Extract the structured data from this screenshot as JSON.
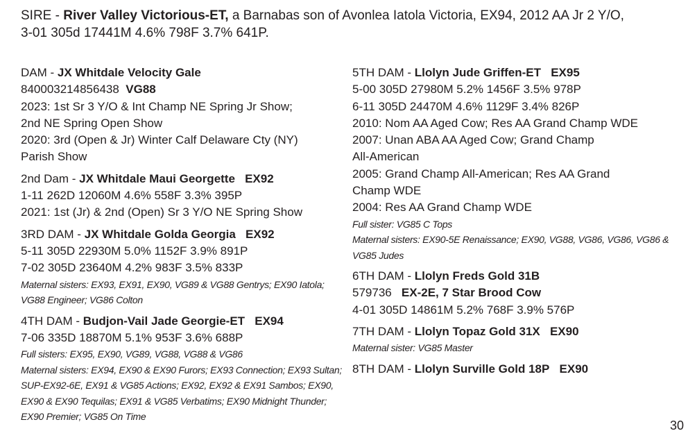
{
  "sire": {
    "label": "SIRE -",
    "name": "River Valley Victorious-ET,",
    "desc": "a Barnabas son of Avonlea Iatola Victoria, EX94, 2012 AA Jr 2 Y/O,",
    "record": "3-01 305d 17441M 4.6% 798F 3.7% 641P."
  },
  "dam": {
    "label": "DAM -",
    "name": "JX Whitdale Velocity Gale",
    "reg": "840003214856438",
    "score": "VG88",
    "lines": [
      "2023: 1st Sr 3 Y/O & Int Champ NE Spring Jr Show;",
      "2nd NE Spring Open Show",
      "2020: 3rd (Open & Jr) Winter Calf Delaware Cty (NY)",
      "Parish Show"
    ]
  },
  "dam2": {
    "label": "2nd Dam -",
    "name": "JX Whitdale Maui Georgette",
    "score": "EX92",
    "lines": [
      "1-11 262D 12060M 4.6% 558F 3.3% 395P",
      "2021: 1st (Jr) & 2nd (Open) Sr 3 Y/O NE Spring Show"
    ]
  },
  "dam3": {
    "label": "3RD DAM -",
    "name": "JX Whitdale Golda Georgia",
    "score": "EX92",
    "lines": [
      "5-11 305D 22930M 5.0% 1152F 3.9% 891P",
      "7-02 305D 23640M 4.2% 983F 3.5% 833P"
    ],
    "notes": [
      "Maternal sisters: EX93, EX91, EX90, VG89 & VG88 Gentrys; EX90 Iatola;",
      "VG88 Engineer; VG86 Colton"
    ]
  },
  "dam4": {
    "label": "4TH DAM -",
    "name": "Budjon-Vail Jade Georgie-ET",
    "score": "EX94",
    "lines": [
      "7-06 335D 18870M 5.1% 953F 3.6% 688P"
    ],
    "notes": [
      "Full sisters: EX95, EX90, VG89, VG88, VG88 & VG86",
      "Maternal sisters: EX94, EX90 & EX90 Furors; EX93 Connection; EX93 Sultan;",
      "SUP-EX92-6E, EX91 & VG85 Actions; EX92, EX92 & EX91 Sambos; EX90,",
      "EX90 & EX90 Tequilas; EX91 & VG85 Verbatims; EX90 Midnight Thunder;",
      "EX90 Premier; VG85 On Time"
    ]
  },
  "dam5": {
    "label": "5TH DAM -",
    "name": "Llolyn Jude Griffen-ET",
    "score": "EX95",
    "lines": [
      "5-00 305D 27980M 5.2% 1456F 3.5% 978P",
      "6-11 305D 24470M 4.6% 1129F 3.4% 826P",
      "2010: Nom AA Aged Cow; Res AA Grand Champ WDE",
      "2007: Unan ABA AA Aged Cow; Grand Champ",
      "All-American",
      "2005: Grand Champ All-American; Res AA Grand",
      "Champ WDE",
      "2004: Res AA Grand Champ WDE"
    ],
    "notes": [
      "Full sister: VG85 C Tops",
      "Maternal sisters: EX90-5E Renaissance; EX90, VG88, VG86, VG86, VG86 &",
      "VG85 Judes"
    ]
  },
  "dam6": {
    "label": "6TH DAM -",
    "name": "Llolyn Freds Gold 31B",
    "reg": "579736",
    "score": "EX-2E, 7 Star Brood Cow",
    "lines": [
      "4-01 305D 14861M 5.2% 768F 3.9% 576P"
    ]
  },
  "dam7": {
    "label": "7TH DAM -",
    "name": "Llolyn Topaz Gold 31X",
    "score": "EX90",
    "notes": [
      "Maternal sister: VG85 Master"
    ]
  },
  "dam8": {
    "label": "8TH DAM -",
    "name": "Llolyn Surville Gold 18P",
    "score": "EX90"
  },
  "page_number": "30"
}
